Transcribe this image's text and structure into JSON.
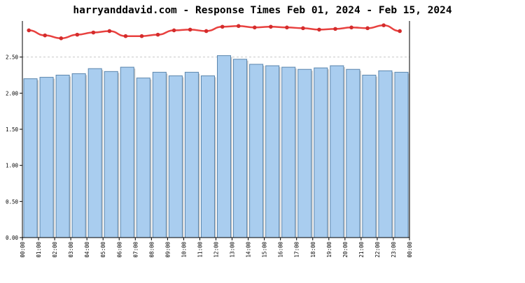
{
  "chart_data": {
    "type": "bar",
    "title": "harryanddavid.com - Response Times Feb 01, 2024 - Feb 15, 2024",
    "xlabel": "",
    "ylabel": "",
    "ylim": [
      0,
      3.0
    ],
    "y_ticks": [
      "0.00",
      "0.50",
      "1.00",
      "1.50",
      "2.00",
      "2.50"
    ],
    "categories": [
      "00:00",
      "01:00",
      "02:00",
      "03:00",
      "04:00",
      "05:00",
      "06:00",
      "07:00",
      "08:00",
      "09:00",
      "10:00",
      "11:00",
      "12:00",
      "13:00",
      "14:00",
      "15:00",
      "16:00",
      "17:00",
      "18:00",
      "19:00",
      "20:00",
      "21:00",
      "22:00",
      "23:00"
    ],
    "x_tick_labels": [
      "00:00",
      "01:00",
      "02:00",
      "03:00",
      "04:00",
      "05:00",
      "06:00",
      "07:00",
      "08:00",
      "09:00",
      "10:00",
      "11:00",
      "12:00",
      "13:00",
      "14:00",
      "15:00",
      "16:00",
      "17:00",
      "18:00",
      "19:00",
      "20:00",
      "21:00",
      "22:00",
      "23:00",
      "00:00"
    ],
    "series": [
      {
        "type": "bar",
        "values": [
          2.2,
          2.22,
          2.25,
          2.27,
          2.34,
          2.3,
          2.36,
          2.21,
          2.29,
          2.24,
          2.29,
          2.24,
          2.52,
          2.47,
          2.4,
          2.38,
          2.36,
          2.33,
          2.35,
          2.38,
          2.33,
          2.25,
          2.31,
          2.29
        ]
      },
      {
        "type": "line",
        "x_positions": [
          0.4,
          1.4,
          2.4,
          3.4,
          4.4,
          5.4,
          6.4,
          7.4,
          8.4,
          9.4,
          10.4,
          11.4,
          12.4,
          13.4,
          14.4,
          15.4,
          16.4,
          17.4,
          18.4,
          19.4,
          20.4,
          21.4,
          22.4,
          23.4
        ],
        "values": [
          2.87,
          2.8,
          2.76,
          2.81,
          2.84,
          2.86,
          2.79,
          2.79,
          2.81,
          2.87,
          2.88,
          2.86,
          2.92,
          2.93,
          2.91,
          2.92,
          2.91,
          2.9,
          2.88,
          2.89,
          2.91,
          2.9,
          2.94,
          2.86
        ]
      }
    ],
    "grid": "horizontal dashed at 2.50",
    "legend": "none",
    "colors": {
      "bar_fill": "#a9cdef",
      "bar_edge": "#5b86ad",
      "line": "#e8413f",
      "marker": "#d42c2c",
      "grid": "#c8c8c8",
      "axis": "#000000"
    }
  }
}
